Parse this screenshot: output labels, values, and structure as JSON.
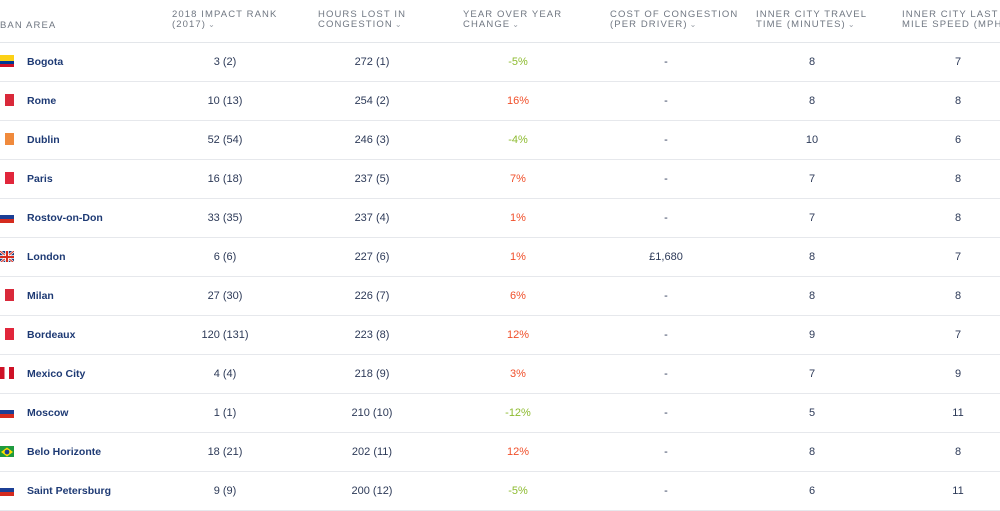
{
  "headers": {
    "urban_area": "BAN AREA",
    "rank": [
      "2018 IMPACT RANK",
      "(2017)"
    ],
    "hours": [
      "HOURS LOST IN",
      "CONGESTION"
    ],
    "yoy": [
      "YEAR OVER YEAR",
      "CHANGE"
    ],
    "cost": [
      "COST OF CONGESTION",
      "(PER DRIVER)"
    ],
    "travel": [
      "INNER CITY TRAVEL",
      "TIME (MINUTES)"
    ],
    "speed": [
      "INNER CITY LAST",
      "MILE SPEED (MPH)"
    ],
    "sort_glyph": "⌄"
  },
  "rows": [
    {
      "city": "Bogota",
      "rank": "3 (2)",
      "hours": "272 (1)",
      "yoy": "-5%",
      "yoy_sign": "neg",
      "cost": "-",
      "travel": "8",
      "speed": "7",
      "flag": [
        "#fcd116",
        "#003893",
        "#ce1126"
      ],
      "flag_dir": "h"
    },
    {
      "city": "Rome",
      "rank": "10 (13)",
      "hours": "254 (2)",
      "yoy": "16%",
      "yoy_sign": "pos",
      "cost": "-",
      "travel": "8",
      "speed": "8",
      "flag": [
        "#ffffff",
        "#d9293a"
      ],
      "flag_dir": "v"
    },
    {
      "city": "Dublin",
      "rank": "52 (54)",
      "hours": "246 (3)",
      "yoy": "-4%",
      "yoy_sign": "neg",
      "cost": "-",
      "travel": "10",
      "speed": "6",
      "flag": [
        "#ffffff",
        "#f08a3c"
      ],
      "flag_dir": "v"
    },
    {
      "city": "Paris",
      "rank": "16 (18)",
      "hours": "237 (5)",
      "yoy": "7%",
      "yoy_sign": "pos",
      "cost": "-",
      "travel": "7",
      "speed": "8",
      "flag": [
        "#ffffff",
        "#e1263b"
      ],
      "flag_dir": "v"
    },
    {
      "city": "Rostov-on-Don",
      "rank": "33 (35)",
      "hours": "237 (4)",
      "yoy": "1%",
      "yoy_sign": "pos",
      "cost": "-",
      "travel": "7",
      "speed": "8",
      "flag": [
        "#ffffff",
        "#1c3f95",
        "#d52b1e"
      ],
      "flag_dir": "h"
    },
    {
      "city": "London",
      "rank": "6 (6)",
      "hours": "227 (6)",
      "yoy": "1%",
      "yoy_sign": "pos",
      "cost": "£1,680",
      "travel": "8",
      "speed": "7",
      "flag": [
        "#1d3c7c",
        "#d52b1e"
      ],
      "flag_dir": "uk"
    },
    {
      "city": "Milan",
      "rank": "27 (30)",
      "hours": "226 (7)",
      "yoy": "6%",
      "yoy_sign": "pos",
      "cost": "-",
      "travel": "8",
      "speed": "8",
      "flag": [
        "#ffffff",
        "#d9293a"
      ],
      "flag_dir": "v"
    },
    {
      "city": "Bordeaux",
      "rank": "120 (131)",
      "hours": "223 (8)",
      "yoy": "12%",
      "yoy_sign": "pos",
      "cost": "-",
      "travel": "9",
      "speed": "7",
      "flag": [
        "#ffffff",
        "#e1263b"
      ],
      "flag_dir": "v"
    },
    {
      "city": "Mexico City",
      "rank": "4 (4)",
      "hours": "218 (9)",
      "yoy": "3%",
      "yoy_sign": "pos",
      "cost": "-",
      "travel": "7",
      "speed": "9",
      "flag": [
        "#ce1126",
        "#ffffff",
        "#ce1126"
      ],
      "flag_dir": "v"
    },
    {
      "city": "Moscow",
      "rank": "1 (1)",
      "hours": "210 (10)",
      "yoy": "-12%",
      "yoy_sign": "neg",
      "cost": "-",
      "travel": "5",
      "speed": "11",
      "flag": [
        "#ffffff",
        "#1c3f95",
        "#d52b1e"
      ],
      "flag_dir": "h"
    },
    {
      "city": "Belo Horizonte",
      "rank": "18 (21)",
      "hours": "202 (11)",
      "yoy": "12%",
      "yoy_sign": "pos",
      "cost": "-",
      "travel": "8",
      "speed": "8",
      "flag": [
        "#1f9b3f",
        "#fedf00",
        "#1c3f95"
      ],
      "flag_dir": "br"
    },
    {
      "city": "Saint Petersburg",
      "rank": "9 (9)",
      "hours": "200 (12)",
      "yoy": "-5%",
      "yoy_sign": "neg",
      "cost": "-",
      "travel": "6",
      "speed": "11",
      "flag": [
        "#ffffff",
        "#1c3f95",
        "#d52b1e"
      ],
      "flag_dir": "h"
    }
  ]
}
